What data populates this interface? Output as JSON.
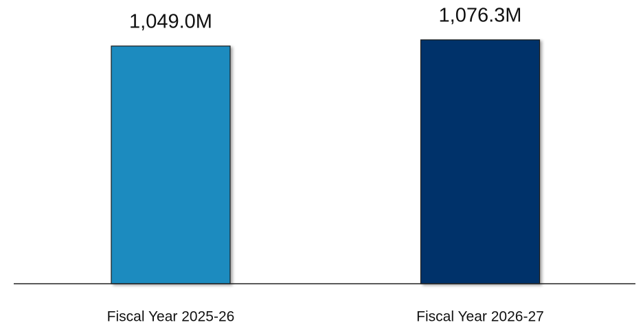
{
  "chart_data": {
    "type": "bar",
    "categories": [
      "Fiscal Year 2025-26",
      "Fiscal Year 2026-27"
    ],
    "values": [
      1049.0,
      1076.3
    ],
    "value_labels": [
      "1,049.0M",
      "1,076.3M"
    ],
    "colors": [
      "#1f8bbf",
      "#02336a"
    ],
    "grid": false
  }
}
